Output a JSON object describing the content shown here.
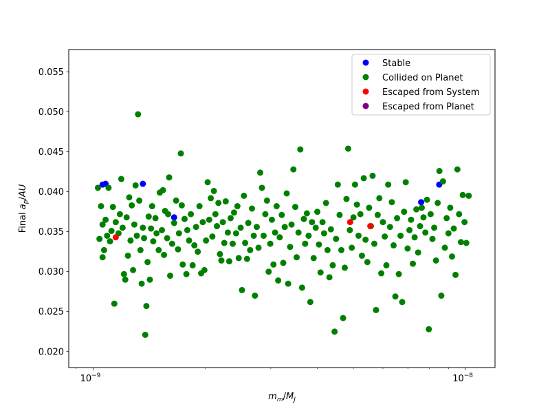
{
  "chart_data": {
    "type": "scatter",
    "xlabel": "m_m/M_J",
    "ylabel": "Final a_p/AU",
    "xscale": "log",
    "xlim": [
      8.6e-10,
      1.2e-08
    ],
    "ylim": [
      0.018,
      0.0578
    ],
    "x_ticks": [
      {
        "value": 1e-09,
        "label": "10",
        "exp": "−9"
      },
      {
        "value": 1e-08,
        "label": "10",
        "exp": "−8"
      }
    ],
    "y_ticks": [
      0.02,
      0.025,
      0.03,
      0.035,
      0.04,
      0.045,
      0.05,
      0.055
    ],
    "y_tick_labels": [
      "0.020",
      "0.025",
      "0.030",
      "0.035",
      "0.040",
      "0.045",
      "0.050",
      "0.055"
    ],
    "grid": false,
    "legend_position": "top-right",
    "series": [
      {
        "name": "Stable",
        "color": "#0000ff",
        "points": [
          [
            1.06e-09,
            0.0409
          ],
          [
            1.08e-09,
            0.041
          ],
          [
            1.36e-09,
            0.041
          ],
          [
            1.65e-09,
            0.0368
          ],
          [
            7.6e-09,
            0.0387
          ],
          [
            8.5e-09,
            0.0409
          ]
        ]
      },
      {
        "name": "Collided on Planet",
        "color": "#008000",
        "points": [
          [
            1.03e-09,
            0.0405
          ],
          [
            1.04e-09,
            0.0341
          ],
          [
            1.05e-09,
            0.0382
          ],
          [
            1.06e-09,
            0.0359
          ],
          [
            1.06e-09,
            0.0318
          ],
          [
            1.07e-09,
            0.0327
          ],
          [
            1.08e-09,
            0.0365
          ],
          [
            1.09e-09,
            0.0345
          ],
          [
            1.1e-09,
            0.0405
          ],
          [
            1.11e-09,
            0.0338
          ],
          [
            1.12e-09,
            0.0351
          ],
          [
            1.13e-09,
            0.0381
          ],
          [
            1.14e-09,
            0.026
          ],
          [
            1.15e-09,
            0.0362
          ],
          [
            1.17e-09,
            0.0348
          ],
          [
            1.18e-09,
            0.0372
          ],
          [
            1.19e-09,
            0.0416
          ],
          [
            1.2e-09,
            0.0355
          ],
          [
            1.21e-09,
            0.0297
          ],
          [
            1.22e-09,
            0.029
          ],
          [
            1.23e-09,
            0.0368
          ],
          [
            1.24e-09,
            0.032
          ],
          [
            1.25e-09,
            0.0393
          ],
          [
            1.26e-09,
            0.0339
          ],
          [
            1.27e-09,
            0.0383
          ],
          [
            1.28e-09,
            0.0302
          ],
          [
            1.29e-09,
            0.0359
          ],
          [
            1.3e-09,
            0.0408
          ],
          [
            1.31e-09,
            0.0345
          ],
          [
            1.32e-09,
            0.0497
          ],
          [
            1.33e-09,
            0.0389
          ],
          [
            1.34e-09,
            0.0327
          ],
          [
            1.35e-09,
            0.0285
          ],
          [
            1.36e-09,
            0.0355
          ],
          [
            1.37e-09,
            0.0342
          ],
          [
            1.38e-09,
            0.0221
          ],
          [
            1.39e-09,
            0.0257
          ],
          [
            1.4e-09,
            0.0312
          ],
          [
            1.41e-09,
            0.0369
          ],
          [
            1.42e-09,
            0.029
          ],
          [
            1.43e-09,
            0.0354
          ],
          [
            1.44e-09,
            0.0382
          ],
          [
            1.45e-09,
            0.0338
          ],
          [
            1.47e-09,
            0.0367
          ],
          [
            1.48e-09,
            0.0348
          ],
          [
            1.5e-09,
            0.0327
          ],
          [
            1.51e-09,
            0.0399
          ],
          [
            1.53e-09,
            0.0352
          ],
          [
            1.54e-09,
            0.0402
          ],
          [
            1.55e-09,
            0.0321
          ],
          [
            1.56e-09,
            0.0376
          ],
          [
            1.58e-09,
            0.0342
          ],
          [
            1.59e-09,
            0.0372
          ],
          [
            1.6e-09,
            0.0418
          ],
          [
            1.61e-09,
            0.0295
          ],
          [
            1.63e-09,
            0.0335
          ],
          [
            1.65e-09,
            0.0361
          ],
          [
            1.67e-09,
            0.0389
          ],
          [
            1.69e-09,
            0.0328
          ],
          [
            1.7e-09,
            0.0348
          ],
          [
            1.72e-09,
            0.0448
          ],
          [
            1.73e-09,
            0.0383
          ],
          [
            1.74e-09,
            0.0309
          ],
          [
            1.76e-09,
            0.0366
          ],
          [
            1.78e-09,
            0.0297
          ],
          [
            1.79e-09,
            0.0352
          ],
          [
            1.81e-09,
            0.0339
          ],
          [
            1.83e-09,
            0.0372
          ],
          [
            1.85e-09,
            0.0308
          ],
          [
            1.87e-09,
            0.0333
          ],
          [
            1.89e-09,
            0.0356
          ],
          [
            1.91e-09,
            0.0325
          ],
          [
            1.93e-09,
            0.0382
          ],
          [
            1.95e-09,
            0.0298
          ],
          [
            1.97e-09,
            0.0362
          ],
          [
            1.99e-09,
            0.0302
          ],
          [
            2.01e-09,
            0.0339
          ],
          [
            2.03e-09,
            0.0412
          ],
          [
            2.05e-09,
            0.0365
          ],
          [
            2.07e-09,
            0.0392
          ],
          [
            2.09e-09,
            0.0344
          ],
          [
            2.11e-09,
            0.0401
          ],
          [
            2.13e-09,
            0.0372
          ],
          [
            2.15e-09,
            0.0357
          ],
          [
            2.17e-09,
            0.0386
          ],
          [
            2.19e-09,
            0.0322
          ],
          [
            2.21e-09,
            0.0314
          ],
          [
            2.23e-09,
            0.0362
          ],
          [
            2.25e-09,
            0.0336
          ],
          [
            2.27e-09,
            0.0388
          ],
          [
            2.3e-09,
            0.0349
          ],
          [
            2.32e-09,
            0.0313
          ],
          [
            2.34e-09,
            0.0367
          ],
          [
            2.37e-09,
            0.0335
          ],
          [
            2.39e-09,
            0.0374
          ],
          [
            2.42e-09,
            0.0348
          ],
          [
            2.44e-09,
            0.0382
          ],
          [
            2.46e-09,
            0.0317
          ],
          [
            2.49e-09,
            0.0355
          ],
          [
            2.51e-09,
            0.0277
          ],
          [
            2.54e-09,
            0.0395
          ],
          [
            2.56e-09,
            0.0336
          ],
          [
            2.59e-09,
            0.0316
          ],
          [
            2.61e-09,
            0.0361
          ],
          [
            2.64e-09,
            0.0327
          ],
          [
            2.67e-09,
            0.0379
          ],
          [
            2.7e-09,
            0.0345
          ],
          [
            2.72e-09,
            0.027
          ],
          [
            2.75e-09,
            0.0356
          ],
          [
            2.78e-09,
            0.033
          ],
          [
            2.81e-09,
            0.0424
          ],
          [
            2.84e-09,
            0.0405
          ],
          [
            2.87e-09,
            0.0345
          ],
          [
            2.9e-09,
            0.0372
          ],
          [
            2.93e-09,
            0.0389
          ],
          [
            2.96e-09,
            0.03
          ],
          [
            2.99e-09,
            0.0335
          ],
          [
            3.02e-09,
            0.0365
          ],
          [
            3.05e-09,
            0.0309
          ],
          [
            3.08e-09,
            0.0349
          ],
          [
            3.11e-09,
            0.0382
          ],
          [
            3.14e-09,
            0.0289
          ],
          [
            3.17e-09,
            0.0343
          ],
          [
            3.21e-09,
            0.0371
          ],
          [
            3.24e-09,
            0.0311
          ],
          [
            3.27e-09,
            0.0356
          ],
          [
            3.31e-09,
            0.0398
          ],
          [
            3.34e-09,
            0.0285
          ],
          [
            3.38e-09,
            0.0331
          ],
          [
            3.41e-09,
            0.0359
          ],
          [
            3.45e-09,
            0.0428
          ],
          [
            3.49e-09,
            0.0381
          ],
          [
            3.52e-09,
            0.0318
          ],
          [
            3.56e-09,
            0.0349
          ],
          [
            3.6e-09,
            0.0453
          ],
          [
            3.64e-09,
            0.028
          ],
          [
            3.68e-09,
            0.0366
          ],
          [
            3.71e-09,
            0.0335
          ],
          [
            3.75e-09,
            0.0373
          ],
          [
            3.79e-09,
            0.0345
          ],
          [
            3.83e-09,
            0.0262
          ],
          [
            3.87e-09,
            0.0362
          ],
          [
            3.91e-09,
            0.0317
          ],
          [
            3.96e-09,
            0.0355
          ],
          [
            4e-09,
            0.0375
          ],
          [
            4.04e-09,
            0.0334
          ],
          [
            4.08e-09,
            0.0299
          ],
          [
            4.13e-09,
            0.0362
          ],
          [
            4.17e-09,
            0.0348
          ],
          [
            4.22e-09,
            0.0386
          ],
          [
            4.26e-09,
            0.0327
          ],
          [
            4.31e-09,
            0.0293
          ],
          [
            4.35e-09,
            0.0353
          ],
          [
            4.4e-09,
            0.0308
          ],
          [
            4.45e-09,
            0.0225
          ],
          [
            4.49e-09,
            0.0341
          ],
          [
            4.54e-09,
            0.0409
          ],
          [
            4.59e-09,
            0.0371
          ],
          [
            4.64e-09,
            0.0327
          ],
          [
            4.69e-09,
            0.0242
          ],
          [
            4.74e-09,
            0.0305
          ],
          [
            4.79e-09,
            0.0391
          ],
          [
            4.84e-09,
            0.0454
          ],
          [
            4.89e-09,
            0.0352
          ],
          [
            4.95e-09,
            0.033
          ],
          [
            5e-09,
            0.0368
          ],
          [
            5.05e-09,
            0.0409
          ],
          [
            5.11e-09,
            0.0384
          ],
          [
            5.16e-09,
            0.0345
          ],
          [
            5.22e-09,
            0.0372
          ],
          [
            5.27e-09,
            0.032
          ],
          [
            5.33e-09,
            0.0417
          ],
          [
            5.39e-09,
            0.034
          ],
          [
            5.45e-09,
            0.0312
          ],
          [
            5.51e-09,
            0.038
          ],
          [
            5.57e-09,
            0.0357
          ],
          [
            5.63e-09,
            0.042
          ],
          [
            5.69e-09,
            0.0335
          ],
          [
            5.75e-09,
            0.0252
          ],
          [
            5.81e-09,
            0.0371
          ],
          [
            5.87e-09,
            0.0392
          ],
          [
            5.94e-09,
            0.0298
          ],
          [
            6e-09,
            0.0362
          ],
          [
            6.07e-09,
            0.0344
          ],
          [
            6.13e-09,
            0.0308
          ],
          [
            6.2e-09,
            0.0409
          ],
          [
            6.27e-09,
            0.0356
          ],
          [
            6.34e-09,
            0.0387
          ],
          [
            6.41e-09,
            0.0333
          ],
          [
            6.48e-09,
            0.0269
          ],
          [
            6.55e-09,
            0.0367
          ],
          [
            6.62e-09,
            0.0297
          ],
          [
            6.69e-09,
            0.0345
          ],
          [
            6.76e-09,
            0.0262
          ],
          [
            6.84e-09,
            0.0375
          ],
          [
            6.91e-09,
            0.0412
          ],
          [
            6.99e-09,
            0.0329
          ],
          [
            7.07e-09,
            0.0352
          ],
          [
            7.14e-09,
            0.0365
          ],
          [
            7.22e-09,
            0.031
          ],
          [
            7.3e-09,
            0.0343
          ],
          [
            7.38e-09,
            0.0378
          ],
          [
            7.46e-09,
            0.0324
          ],
          [
            7.55e-09,
            0.0357
          ],
          [
            7.63e-09,
            0.038
          ],
          [
            7.71e-09,
            0.0368
          ],
          [
            7.8e-09,
            0.0349
          ],
          [
            7.88e-09,
            0.039
          ],
          [
            7.97e-09,
            0.0228
          ],
          [
            8.06e-09,
            0.0372
          ],
          [
            8.15e-09,
            0.0341
          ],
          [
            8.24e-09,
            0.0355
          ],
          [
            8.33e-09,
            0.0314
          ],
          [
            8.42e-09,
            0.0386
          ],
          [
            8.51e-09,
            0.0426
          ],
          [
            8.61e-09,
            0.027
          ],
          [
            8.7e-09,
            0.0413
          ],
          [
            8.8e-09,
            0.033
          ],
          [
            8.9e-09,
            0.0367
          ],
          [
            9e-09,
            0.0348
          ],
          [
            9.1e-09,
            0.038
          ],
          [
            9.2e-09,
            0.0319
          ],
          [
            9.3e-09,
            0.0354
          ],
          [
            9.4e-09,
            0.0296
          ],
          [
            9.51e-09,
            0.0428
          ],
          [
            9.61e-09,
            0.0372
          ],
          [
            9.72e-09,
            0.0337
          ],
          [
            9.83e-09,
            0.0396
          ],
          [
            9.94e-09,
            0.0362
          ],
          [
            1.005e-08,
            0.0336
          ],
          [
            1.02e-08,
            0.0395
          ]
        ]
      },
      {
        "name": "Escaped from System",
        "color": "#ff0000",
        "points": [
          [
            1.15e-09,
            0.0343
          ],
          [
            4.9e-09,
            0.0362
          ],
          [
            5.55e-09,
            0.0357
          ]
        ]
      },
      {
        "name": "Escaped from Planet",
        "color": "#800080",
        "points": []
      }
    ]
  }
}
